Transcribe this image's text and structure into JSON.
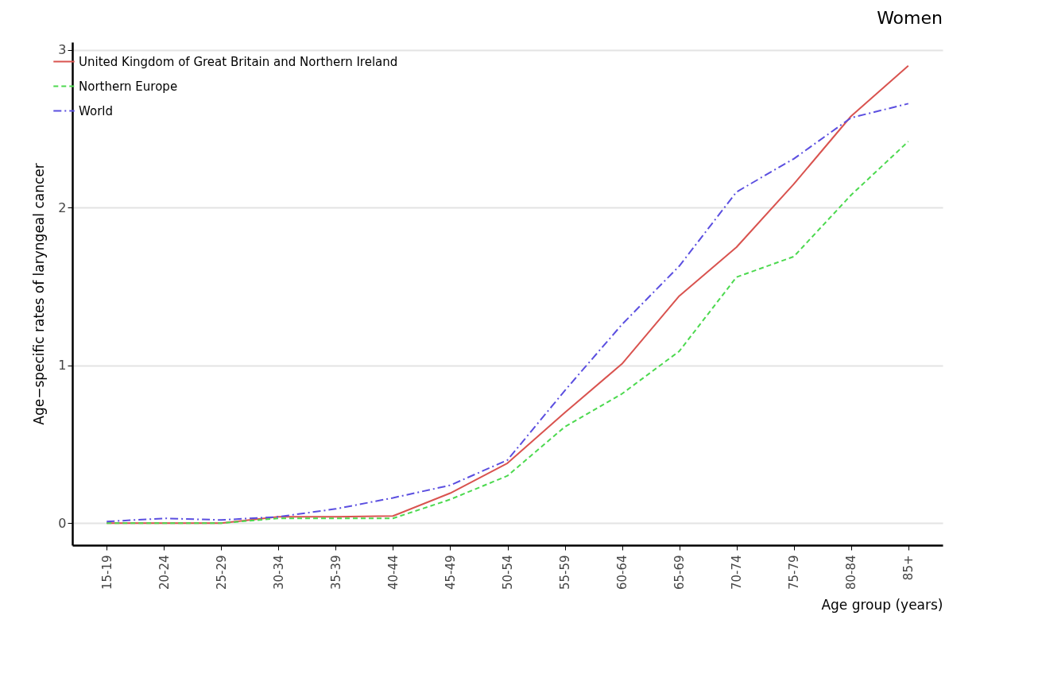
{
  "chart_data": {
    "type": "line",
    "title": "Women",
    "xlabel": "Age group (years)",
    "ylabel": "Age−specific rates of laryngeal cancer",
    "categories": [
      "15-19",
      "20-24",
      "25-29",
      "30-34",
      "35-39",
      "40-44",
      "45-49",
      "50-54",
      "55-59",
      "60-64",
      "65-69",
      "70-74",
      "75-79",
      "80-84",
      "85+"
    ],
    "series": [
      {
        "name": "United Kingdom of Great Britain and Northern Ireland",
        "color": "#d9534f",
        "line_style": "solid",
        "values": [
          0,
          0,
          0,
          0.04,
          0.04,
          0.045,
          0.19,
          0.38,
          0.7,
          1.01,
          1.44,
          1.75,
          2.15,
          2.58,
          2.9
        ]
      },
      {
        "name": "Northern Europe",
        "color": "#4cd94f",
        "line_style": "dashed",
        "values": [
          0,
          0,
          0,
          0.03,
          0.03,
          0.03,
          0.15,
          0.3,
          0.61,
          0.82,
          1.09,
          1.56,
          1.69,
          2.08,
          2.42
        ]
      },
      {
        "name": "World",
        "color": "#5b4fe0",
        "line_style": "dashdot",
        "values": [
          0.01,
          0.03,
          0.02,
          0.04,
          0.09,
          0.16,
          0.24,
          0.4,
          0.84,
          1.26,
          1.63,
          2.1,
          2.31,
          2.57,
          2.66
        ]
      }
    ],
    "ylim": [
      -0.14,
      3.05
    ],
    "yticks": [
      0,
      1,
      2,
      3
    ],
    "grid": "y",
    "legend": "top left"
  }
}
